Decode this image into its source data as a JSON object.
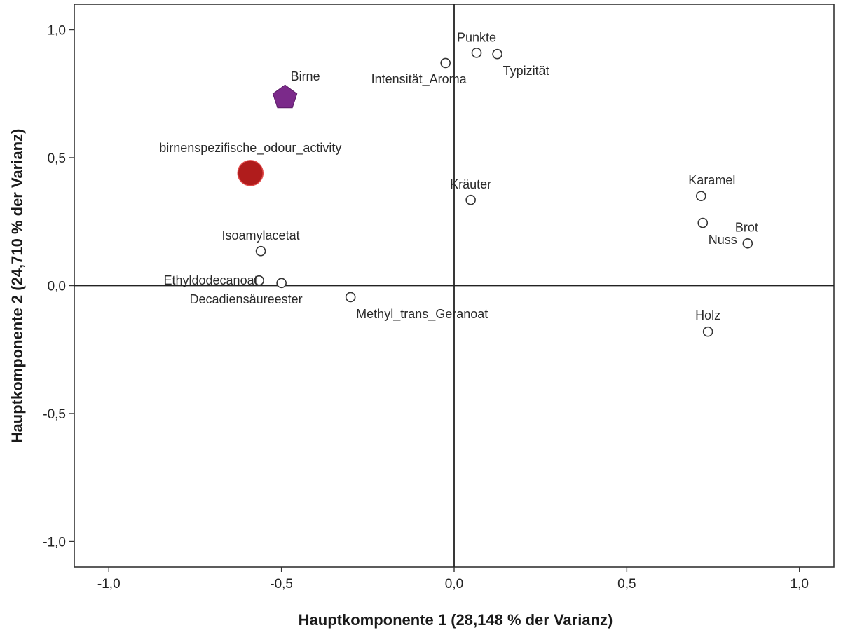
{
  "chart_data": {
    "type": "scatter",
    "title": "",
    "xlabel": "Hauptkomponente 1 (28,148 % der Varianz)",
    "ylabel": "Hauptkomponente 2 (24,710 % der Varianz)",
    "xlim": [
      -1.1,
      1.1
    ],
    "ylim": [
      -1.1,
      1.1
    ],
    "xticks": [
      -1.0,
      -0.5,
      0.0,
      0.5,
      1.0
    ],
    "yticks": [
      -1.0,
      -0.5,
      0.0,
      0.5,
      1.0
    ],
    "xtick_labels": [
      "-1,0",
      "-0,5",
      "0,0",
      "0,5",
      "1,0"
    ],
    "ytick_labels": [
      "-1,0",
      "-0,5",
      "0,0",
      "0,5",
      "1,0"
    ],
    "grid": false,
    "reference_lines": {
      "x": 0,
      "y": 0
    },
    "points": [
      {
        "label": "Punkte",
        "x": 0.065,
        "y": 0.91,
        "marker": "circle",
        "label_pos": "above"
      },
      {
        "label": "Typizität",
        "x": 0.125,
        "y": 0.905,
        "marker": "circle",
        "label_pos": "below-right"
      },
      {
        "label": "Intensität_Aroma",
        "x": -0.025,
        "y": 0.87,
        "marker": "circle",
        "label_pos": "below-left"
      },
      {
        "label": "Kräuter",
        "x": 0.048,
        "y": 0.335,
        "marker": "circle",
        "label_pos": "above"
      },
      {
        "label": "Karamel",
        "x": 0.715,
        "y": 0.35,
        "marker": "circle",
        "label_pos": "above-right"
      },
      {
        "label": "Nuss",
        "x": 0.72,
        "y": 0.245,
        "marker": "circle",
        "label_pos": "below-right"
      },
      {
        "label": "Brot",
        "x": 0.85,
        "y": 0.165,
        "marker": "circle",
        "label_pos": "above-right"
      },
      {
        "label": "Holz",
        "x": 0.735,
        "y": -0.18,
        "marker": "circle",
        "label_pos": "above-right"
      },
      {
        "label": "Isoamylacetat",
        "x": -0.56,
        "y": 0.135,
        "marker": "circle",
        "label_pos": "above"
      },
      {
        "label": "Ethyldodecanoat",
        "x": -0.565,
        "y": 0.02,
        "marker": "circle",
        "label_pos": "left"
      },
      {
        "label": "Decadiensäureester",
        "x": -0.5,
        "y": 0.01,
        "marker": "circle",
        "label_pos": "below-left"
      },
      {
        "label": "Methyl_trans_Geranoat",
        "x": -0.3,
        "y": -0.045,
        "marker": "circle",
        "label_pos": "below-right"
      },
      {
        "label": "Birne",
        "x": -0.49,
        "y": 0.735,
        "marker": "pentagon",
        "color": "#7b2a8a",
        "label_pos": "above-right"
      },
      {
        "label": "birnenspezifische_odour_activity",
        "x": -0.59,
        "y": 0.44,
        "marker": "big-circle",
        "color": "#b01c1c",
        "label_pos": "above"
      }
    ]
  }
}
